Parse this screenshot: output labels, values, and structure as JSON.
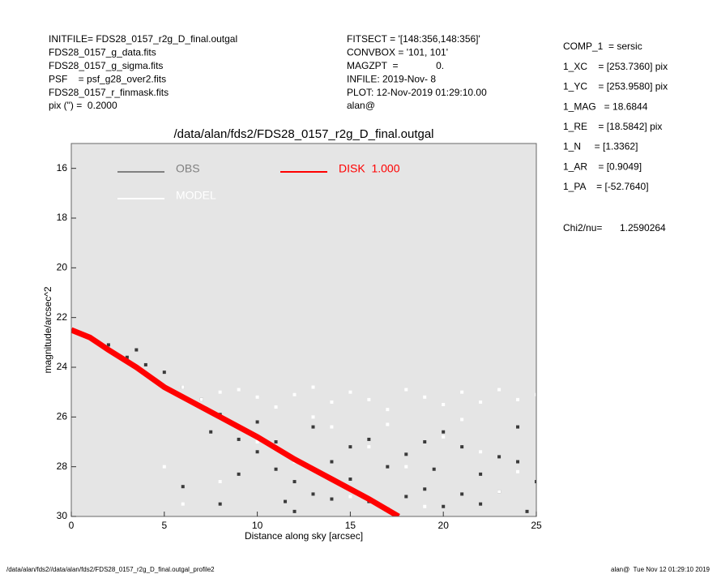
{
  "header": {
    "left": [
      "INITFILE= FDS28_0157_r2g_D_final.outgal",
      "FDS28_0157_g_data.fits",
      "FDS28_0157_g_sigma.fits",
      "PSF    = psf_g28_over2.fits",
      "FDS28_0157_r_finmask.fits",
      "pix (\") =  0.2000"
    ],
    "middle": [
      "FITSECT = '[148:356,148:356]'",
      "CONVBOX = '101, 101'",
      "MAGZPT  =              0.",
      "INFILE: 2019-Nov- 8",
      "PLOT: 12-Nov-2019 01:29:10.00",
      "alan@"
    ]
  },
  "params": [
    "COMP_1  = sersic",
    "1_XC    = [253.7360] pix",
    "1_YC    = [253.9580] pix",
    "1_MAG   = 18.6844",
    "1_RE    = [18.5842] pix",
    "1_N     = [1.3362]",
    "1_AR    = [0.9049]",
    "1_PA    = [-52.7640]"
  ],
  "chi2": {
    "label": "Chi2/nu=",
    "value": "1.2590264"
  },
  "chart_data": {
    "type": "scatter",
    "title": "/data/alan/fds2/FDS28_0157_r2g_D_final.outgal",
    "x_label": "Distance along sky [arcsec]",
    "y_label": "magnitude/arcsec^2",
    "xlim": [
      0,
      25
    ],
    "xticks": [
      0,
      5,
      10,
      15,
      20,
      25
    ],
    "ylim": [
      15,
      30
    ],
    "y_inverted": true,
    "yticks": [
      16,
      18,
      20,
      22,
      24,
      26,
      28,
      30
    ],
    "background": "#e5e5e5",
    "series": [
      {
        "name": "OBS",
        "color": "#808080",
        "point_color": "#3a3a3a",
        "x": [
          1,
          2,
          3,
          4,
          5,
          6,
          7,
          8,
          9,
          10,
          11,
          12,
          13,
          14,
          15,
          16,
          17,
          18,
          19,
          20,
          21,
          22,
          23,
          24,
          25,
          6,
          8,
          10,
          12,
          14,
          16,
          18,
          20,
          22,
          24,
          9,
          11,
          13,
          15,
          17,
          19,
          21,
          23,
          3.5,
          4.5,
          7.5,
          11.5,
          19.5,
          24.5
        ],
        "values": [
          22.8,
          23.1,
          23.6,
          23.9,
          24.2,
          24.8,
          25.3,
          25.9,
          26.9,
          27.4,
          28.1,
          28.6,
          29.1,
          27.8,
          28.5,
          29.4,
          28.0,
          27.5,
          28.9,
          29.6,
          27.2,
          28.3,
          29.0,
          27.8,
          28.6,
          28.8,
          29.5,
          26.2,
          29.8,
          29.3,
          26.9,
          29.2,
          26.6,
          29.5,
          26.4,
          28.3,
          27.0,
          26.4,
          27.2,
          29.7,
          27.0,
          29.1,
          27.6,
          23.3,
          24.5,
          26.6,
          29.4,
          28.1,
          29.8
        ]
      },
      {
        "name": "MODEL",
        "color": "#ffffff",
        "point_color": "#ffffff",
        "x": [
          6,
          7,
          8,
          9,
          10,
          11,
          12,
          13,
          14,
          15,
          16,
          17,
          18,
          19,
          20,
          21,
          22,
          23,
          24,
          25,
          10,
          12,
          14,
          16,
          18,
          20,
          22,
          24,
          8,
          15,
          19,
          23,
          13,
          17,
          21,
          5,
          6
        ],
        "values": [
          24.8,
          25.3,
          25.0,
          24.9,
          25.2,
          25.6,
          25.1,
          24.8,
          25.4,
          25.0,
          25.3,
          25.7,
          24.9,
          25.2,
          25.5,
          25.0,
          25.4,
          24.9,
          25.3,
          25.1,
          27.0,
          27.8,
          26.4,
          27.2,
          28.0,
          26.8,
          27.4,
          28.2,
          28.6,
          29.2,
          29.6,
          29.0,
          26.0,
          26.3,
          26.1,
          28.0,
          29.5
        ]
      },
      {
        "name": "DISK  1.000",
        "color": "#ff0000",
        "type": "line",
        "x": [
          0,
          1,
          2,
          3.5,
          5,
          6.5,
          8,
          10,
          12,
          14,
          16,
          17.6
        ],
        "values": [
          22.5,
          22.8,
          23.3,
          24.0,
          24.8,
          25.4,
          26.0,
          26.8,
          27.7,
          28.5,
          29.3,
          30.0
        ]
      }
    ]
  },
  "footer": {
    "left": "/data/alan/fds2//data/alan/fds2/FDS28_0157_r2g_D_final.outgal_profile2",
    "right": "alan@  Tue Nov 12 01:29:10 2019"
  }
}
